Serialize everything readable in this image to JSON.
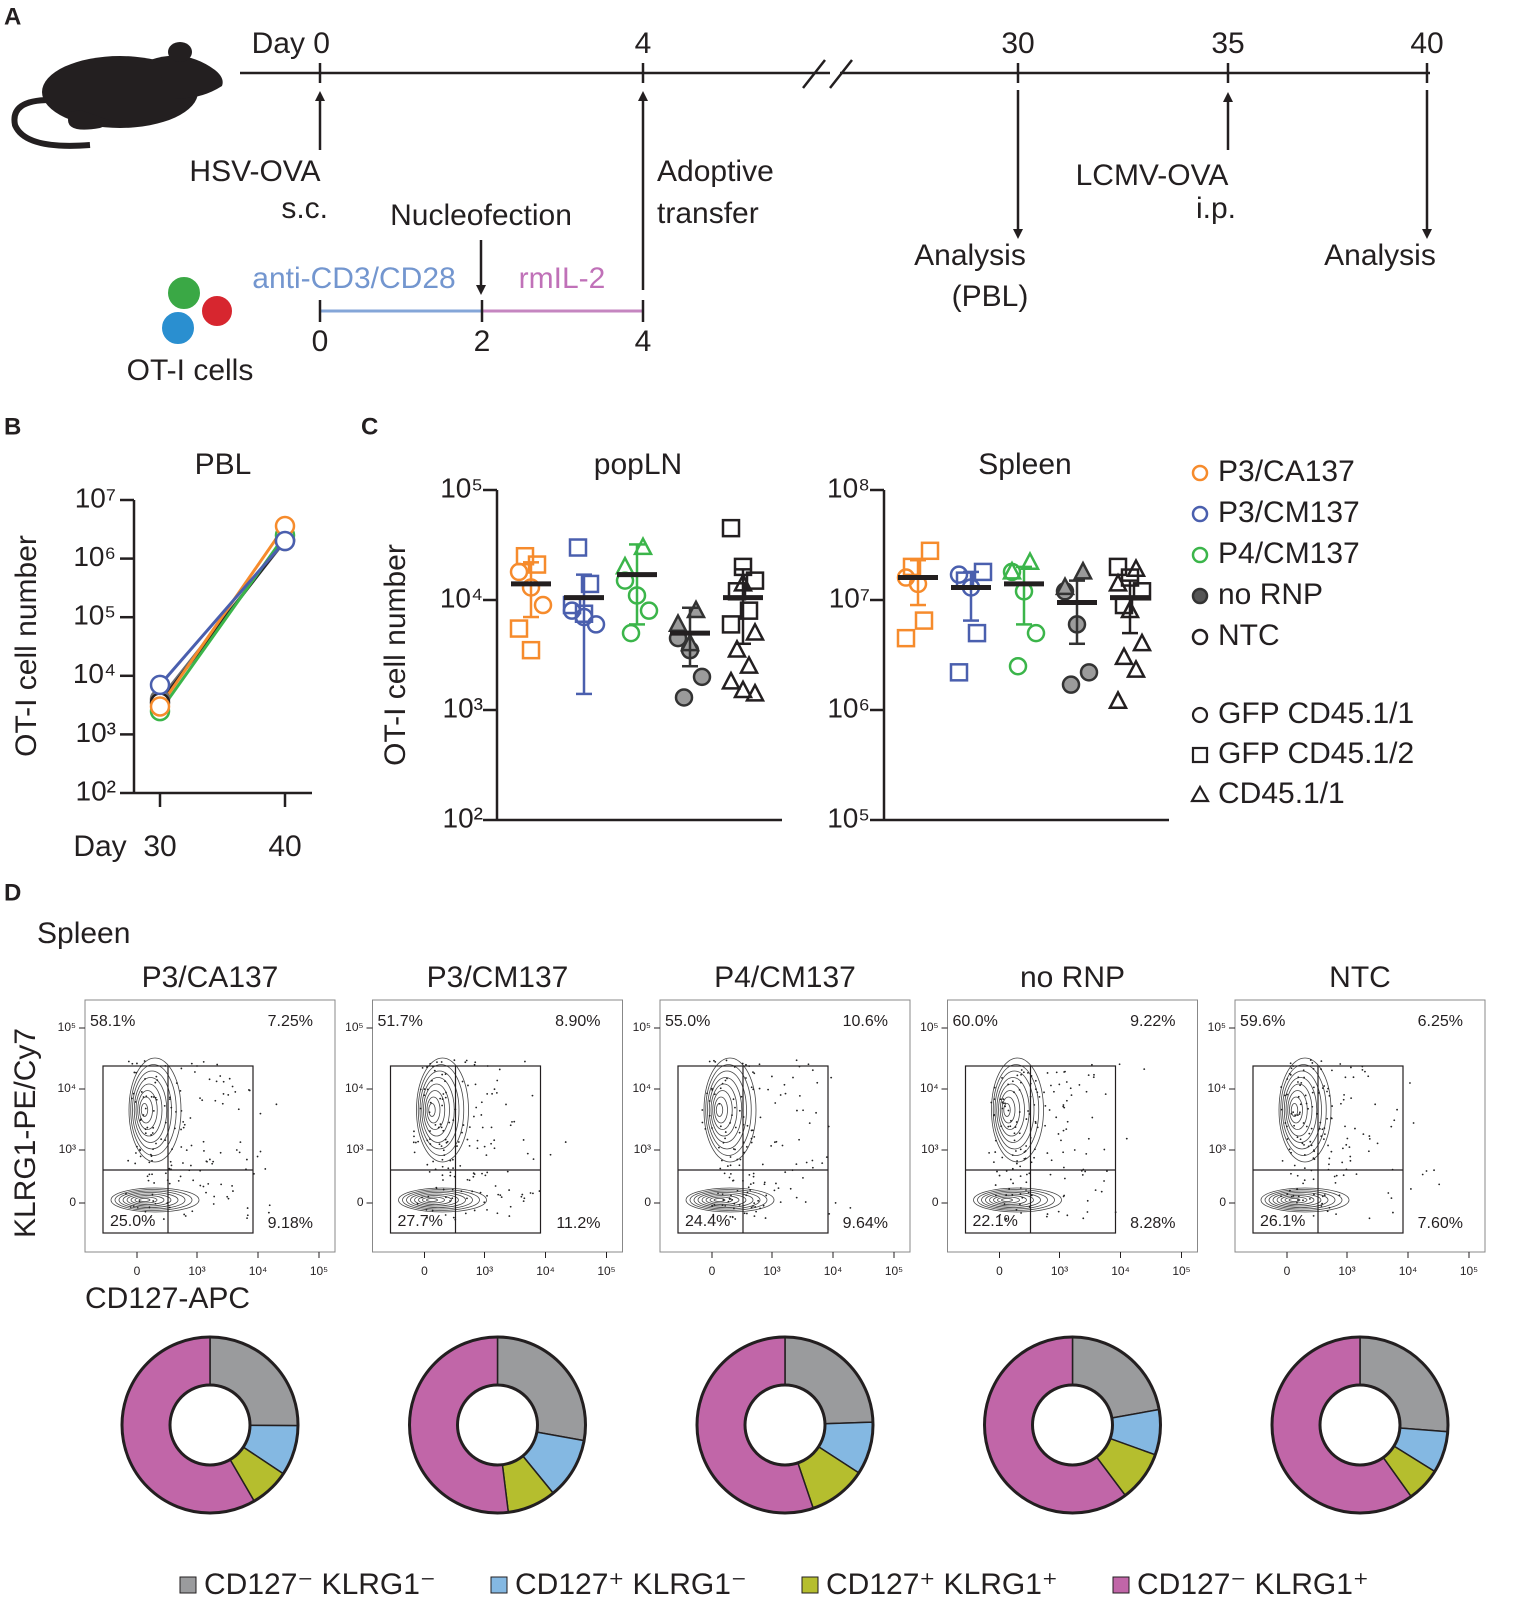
{
  "panel_a": {
    "label": "A",
    "timeline": [
      "Day 0",
      "4",
      "30",
      "35",
      "40"
    ],
    "infection": [
      "HSV-OVA",
      "s.c."
    ],
    "transfer": [
      "Adoptive",
      "transfer"
    ],
    "analysis_pbl": [
      "Analysis",
      "(PBL)"
    ],
    "challenge": [
      "LCMV-OVA",
      "i.p."
    ],
    "analysis_final": "Analysis",
    "culture": {
      "stages": [
        "anti-CD3/CD28",
        "rmIL-2"
      ],
      "days": [
        "0",
        "2",
        "4"
      ],
      "step": "Nucleofection",
      "cells": "OT-I cells"
    }
  },
  "chart_data": [
    {
      "type": "line",
      "label": "B",
      "title": "PBL",
      "x_label": "Day",
      "y_label": "OT-I cell number",
      "log_y": true,
      "categories": [
        "30",
        "40"
      ],
      "ylim": [
        100,
        10000000
      ],
      "yticks": [
        {
          "value": 100,
          "label": "10²"
        },
        {
          "value": 1000,
          "label": "10³"
        },
        {
          "value": 10000,
          "label": "10⁴"
        },
        {
          "value": 100000,
          "label": "10⁵"
        },
        {
          "value": 1000000,
          "label": "10⁶"
        },
        {
          "value": 10000000,
          "label": "10⁷"
        }
      ],
      "series": [
        {
          "color": "#6d6e70",
          "values": [
            4000,
            2000000
          ]
        },
        {
          "color": "#231f20",
          "values": [
            3500,
            2100000
          ]
        },
        {
          "color": "#3bb54a",
          "values": [
            2500,
            2500000
          ]
        },
        {
          "color": "#f68b2c",
          "values": [
            3000,
            3600000
          ]
        },
        {
          "color": "#4a5fae",
          "values": [
            7000,
            2000000
          ]
        }
      ]
    },
    {
      "type": "dot-plot",
      "label": "C",
      "y_label": "OT-I cell number",
      "log_y": true,
      "legend": [
        {
          "name": "P3/CA137",
          "color": "#f68b2c",
          "fill": "none"
        },
        {
          "name": "P3/CM137",
          "color": "#4a5fae",
          "fill": "none"
        },
        {
          "name": "P4/CM137",
          "color": "#3bb54a",
          "fill": "none"
        },
        {
          "name": "no RNP",
          "color": "#333333",
          "fill": "#9b9b9b"
        },
        {
          "name": "NTC",
          "color": "#231f20",
          "fill": "none"
        }
      ],
      "shape_legend": [
        {
          "name": "GFP CD45.1/1",
          "shape": "circle"
        },
        {
          "name": "GFP CD45.1/2",
          "shape": "square"
        },
        {
          "name": "CD45.1/1",
          "shape": "triangle"
        }
      ],
      "panels": [
        {
          "title": "popLN",
          "ylim": [
            100,
            100000
          ],
          "yticks": [
            {
              "value": 100,
              "label": "10²"
            },
            {
              "value": 1000,
              "label": "10³"
            },
            {
              "value": 10000,
              "label": "10⁴"
            },
            {
              "value": 100000,
              "label": "10⁵"
            }
          ],
          "groups": [
            {
              "mean": 14000,
              "err": [
                7000,
                22000
              ],
              "circle": [
                18000,
                13000,
                9000
              ],
              "square": [
                25000,
                21000,
                5500,
                3500
              ],
              "triangle": []
            },
            {
              "mean": 10500,
              "err": [
                1400,
                17000
              ],
              "circle": [
                8000,
                7000,
                6000
              ],
              "square": [
                30000,
                14000,
                9000,
                7500
              ],
              "triangle": []
            },
            {
              "mean": 17000,
              "err": [
                6000,
                32000
              ],
              "circle": [
                15000,
                11000,
                8000,
                5000
              ],
              "square": [],
              "triangle": [
                30000,
                20000
              ]
            },
            {
              "mean": 5000,
              "err": [
                2500,
                8500
              ],
              "circle": [
                4500,
                3500,
                2000,
                1300
              ],
              "square": [],
              "triangle": [
                8000,
                6000,
                4000
              ]
            },
            {
              "mean": 10500,
              "err": [
                4000,
                19000
              ],
              "circle": [],
              "square": [
                45000,
                20000,
                15000,
                12000,
                8000,
                6000
              ],
              "triangle": [
                14000,
                5000,
                3500,
                2500,
                1800,
                1500,
                1400
              ]
            }
          ]
        },
        {
          "title": "Spleen",
          "ylim": [
            100000,
            100000000
          ],
          "yticks": [
            {
              "value": 100000,
              "label": "10⁵"
            },
            {
              "value": 1000000,
              "label": "10⁶"
            },
            {
              "value": 10000000,
              "label": "10⁷"
            },
            {
              "value": 100000000,
              "label": "10⁸"
            }
          ],
          "groups": [
            {
              "mean": 16000000,
              "err": [
                9000000,
                23000000
              ],
              "circle": [
                16000000,
                14000000
              ],
              "square": [
                28000000,
                20000000,
                6500000,
                4500000
              ],
              "triangle": []
            },
            {
              "mean": 13000000,
              "err": [
                6500000,
                18000000
              ],
              "circle": [
                17000000,
                13000000
              ],
              "square": [
                18000000,
                15000000,
                5000000,
                2200000
              ],
              "triangle": []
            },
            {
              "mean": 14000000,
              "err": [
                6000000,
                20000000
              ],
              "circle": [
                18000000,
                12000000,
                5000000,
                2500000
              ],
              "square": [],
              "triangle": [
                22000000,
                18000000
              ]
            },
            {
              "mean": 9500000,
              "err": [
                4000000,
                15000000
              ],
              "circle": [
                12000000,
                6000000,
                2200000,
                1700000
              ],
              "square": [],
              "triangle": [
                18000000,
                13000000
              ]
            },
            {
              "mean": 10500000,
              "err": [
                5000000,
                15000000
              ],
              "circle": [],
              "square": [
                20000000,
                16000000,
                12000000,
                9000000
              ],
              "triangle": [
                19000000,
                14000000,
                8000000,
                4000000,
                3000000,
                2300000,
                1200000
              ]
            }
          ]
        }
      ]
    },
    {
      "type": "flow-donut",
      "label": "D",
      "title": "Spleen",
      "x_label": "CD127-APC",
      "y_label": "KLRG1-PE/Cy7",
      "ticks": [
        {
          "value": 0,
          "label": "0"
        },
        {
          "value": 1000,
          "label": "10³"
        },
        {
          "value": 10000,
          "label": "10⁴"
        },
        {
          "value": 100000,
          "label": "10⁵"
        }
      ],
      "categories": [
        "CD127⁻ KLRG1⁻",
        "CD127⁺ KLRG1⁻",
        "CD127⁺ KLRG1⁺",
        "CD127⁻ KLRG1⁺"
      ],
      "colors": [
        "#9a9b9d",
        "#84b8e2",
        "#b5be2e",
        "#c166a8"
      ],
      "samples": [
        {
          "name": "P3/CA137",
          "values": [
            25.0,
            9.18,
            7.25,
            58.1
          ],
          "value_labels": [
            "25.0%",
            "9.18%",
            "7.25%",
            "58.1%"
          ]
        },
        {
          "name": "P3/CM137",
          "values": [
            27.7,
            11.2,
            8.9,
            51.7
          ],
          "value_labels": [
            "27.7%",
            "11.2%",
            "8.90%",
            "51.7%"
          ]
        },
        {
          "name": "P4/CM137",
          "values": [
            24.4,
            9.64,
            10.6,
            55.0
          ],
          "value_labels": [
            "24.4%",
            "9.64%",
            "10.6%",
            "55.0%"
          ]
        },
        {
          "name": "no RNP",
          "values": [
            22.1,
            8.28,
            9.22,
            60.0
          ],
          "value_labels": [
            "22.1%",
            "8.28%",
            "9.22%",
            "60.0%"
          ]
        },
        {
          "name": "NTC",
          "values": [
            26.1,
            7.6,
            6.25,
            59.6
          ],
          "value_labels": [
            "26.1%",
            "7.60%",
            "6.25%",
            "59.6%"
          ]
        }
      ]
    }
  ]
}
